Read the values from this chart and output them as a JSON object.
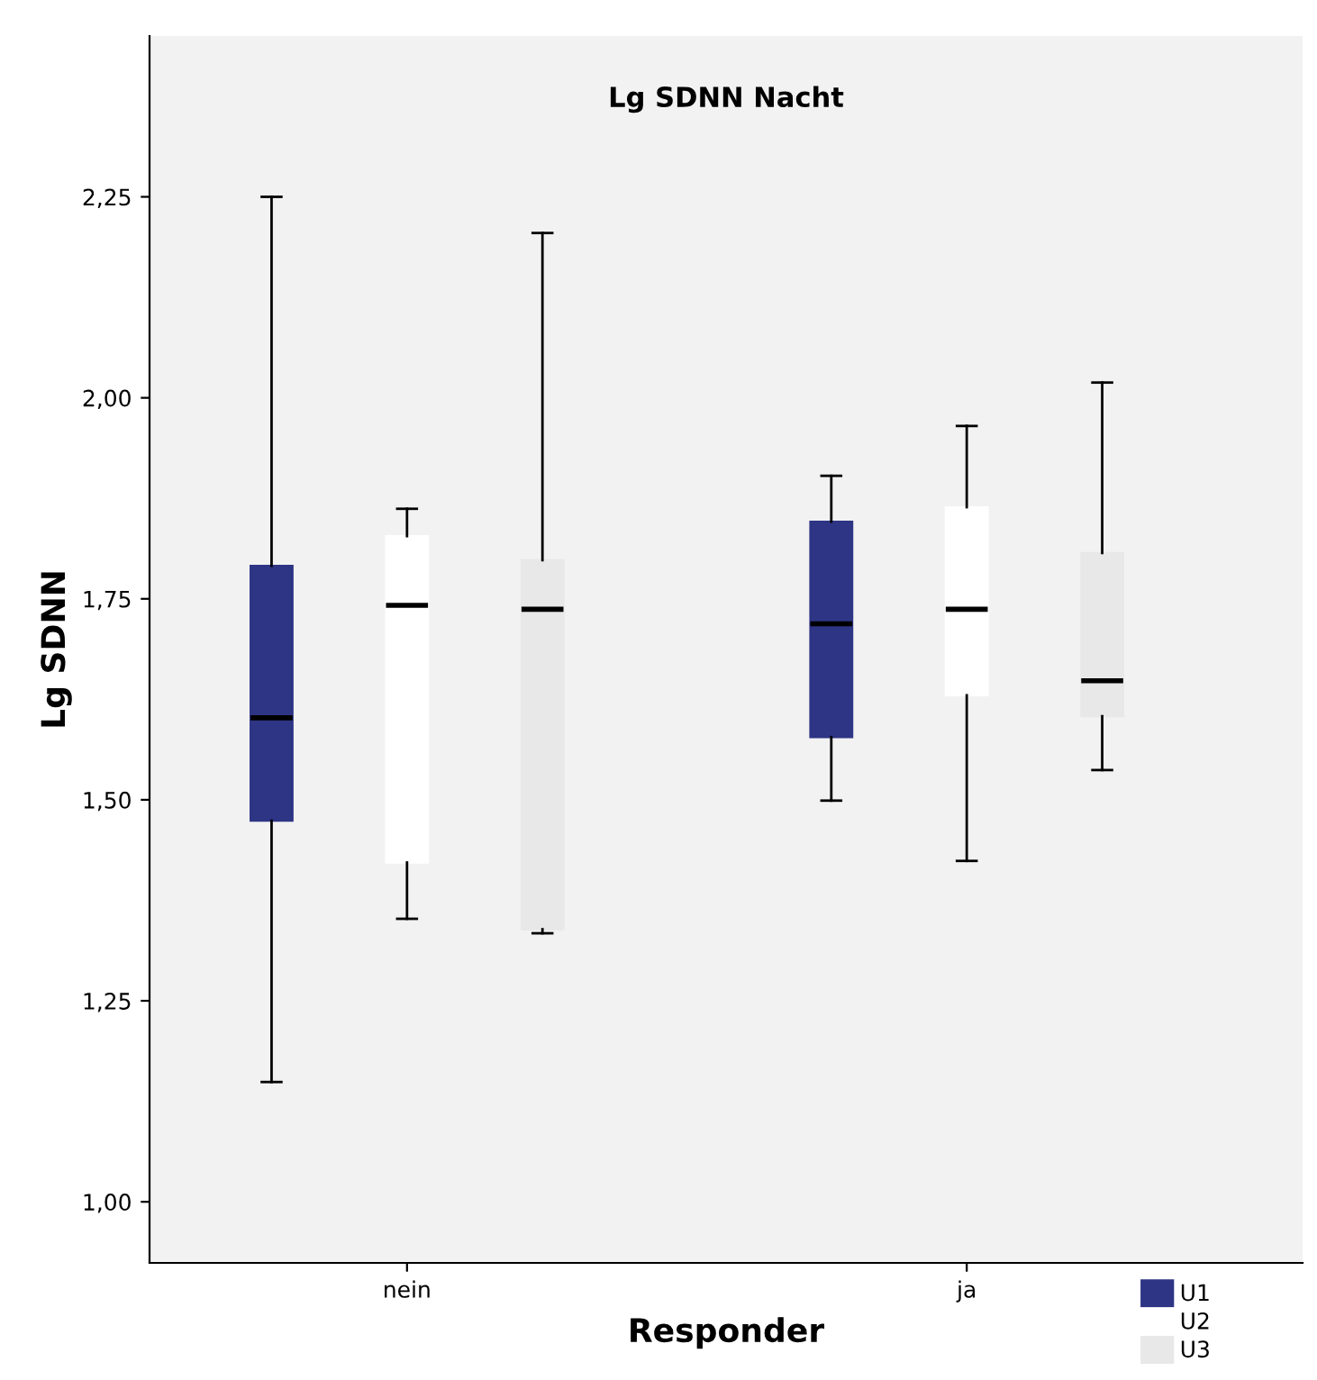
{
  "chart_data": {
    "type": "box",
    "title": "Lg SDNN Nacht",
    "xlabel": "Responder",
    "ylabel": "Lg SDNN",
    "categories": [
      "nein",
      "ja"
    ],
    "ylim": [
      0.924,
      2.45
    ],
    "yticks": [
      {
        "value": 1.0,
        "label": "1,00"
      },
      {
        "value": 1.25,
        "label": "1,25"
      },
      {
        "value": 1.5,
        "label": "1,50"
      },
      {
        "value": 1.75,
        "label": "1,75"
      },
      {
        "value": 2.0,
        "label": "2,00"
      },
      {
        "value": 2.25,
        "label": "2,25"
      }
    ],
    "grid": false,
    "legend": "bottom right",
    "series": [
      {
        "name": "U1",
        "color": "#2e3585",
        "boxes": [
          {
            "low": 1.149,
            "q1": 1.474,
            "median": 1.602,
            "q3": 1.791,
            "high": 2.25
          },
          {
            "low": 1.499,
            "q1": 1.578,
            "median": 1.719,
            "q3": 1.846,
            "high": 1.903
          }
        ]
      },
      {
        "name": "U2",
        "color": "#ffffff",
        "boxes": [
          {
            "low": 1.352,
            "q1": 1.422,
            "median": 1.742,
            "q3": 1.828,
            "high": 1.862
          },
          {
            "low": 1.424,
            "q1": 1.63,
            "median": 1.737,
            "q3": 1.864,
            "high": 1.965
          }
        ]
      },
      {
        "name": "U3",
        "color": "#e8e8e8",
        "boxes": [
          {
            "low": 1.334,
            "q1": 1.339,
            "median": 1.737,
            "q3": 1.798,
            "high": 2.205
          },
          {
            "low": 1.537,
            "q1": 1.604,
            "median": 1.648,
            "q3": 1.807,
            "high": 2.019
          }
        ]
      }
    ]
  }
}
